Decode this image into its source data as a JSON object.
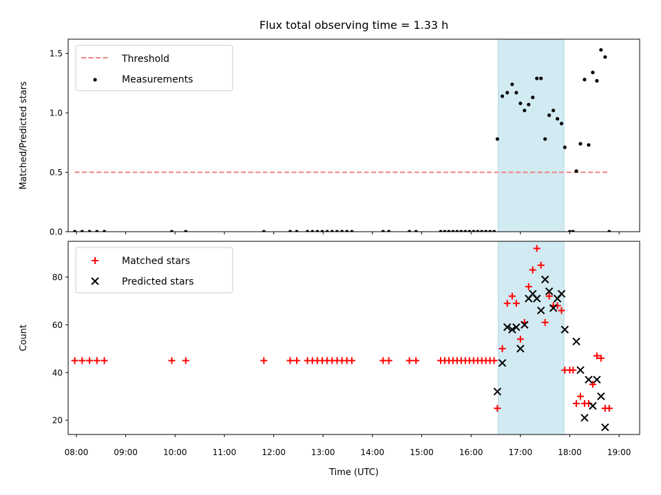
{
  "chart_data": {
    "title": "Flux total observing time = 1.33 h",
    "xlabel": "Time (UTC)",
    "x_ticks": [
      "08:00",
      "09:00",
      "10:00",
      "11:00",
      "12:00",
      "13:00",
      "14:00",
      "15:00",
      "16:00",
      "17:00",
      "18:00",
      "19:00"
    ],
    "xlim": [
      "07:50",
      "19:25"
    ],
    "shaded_interval": {
      "start": "16:33",
      "end": "17:53",
      "color": "#add8e6"
    },
    "panels": [
      {
        "type": "scatter",
        "ylabel": "Matched/Predicted stars",
        "ylim": [
          0,
          1.62
        ],
        "y_ticks": [
          0.0,
          0.5,
          1.0,
          1.5
        ],
        "y_tick_labels": [
          "0.0",
          "0.5",
          "1.0",
          "1.5"
        ],
        "legend_position": "upper-left",
        "series": [
          {
            "name": "Threshold",
            "style": "dashed-line",
            "color": "#f08080",
            "points": [
              [
                "07:58",
                0.5
              ],
              [
                "18:48",
                0.5
              ]
            ]
          },
          {
            "name": "Measurements",
            "style": "dot",
            "color": "#000000",
            "points": [
              [
                "07:58",
                0
              ],
              [
                "08:07",
                0
              ],
              [
                "08:16",
                0
              ],
              [
                "08:25",
                0
              ],
              [
                "08:34",
                0
              ],
              [
                "09:56",
                0
              ],
              [
                "10:13",
                0
              ],
              [
                "11:48",
                0
              ],
              [
                "12:20",
                0
              ],
              [
                "12:28",
                0
              ],
              [
                "12:41",
                0
              ],
              [
                "12:47",
                0
              ],
              [
                "12:53",
                0
              ],
              [
                "12:59",
                0
              ],
              [
                "13:05",
                0
              ],
              [
                "13:11",
                0
              ],
              [
                "13:17",
                0
              ],
              [
                "13:23",
                0
              ],
              [
                "13:29",
                0
              ],
              [
                "13:35",
                0
              ],
              [
                "14:13",
                0
              ],
              [
                "14:20",
                0
              ],
              [
                "14:45",
                0
              ],
              [
                "14:53",
                0
              ],
              [
                "15:23",
                0
              ],
              [
                "15:28",
                0
              ],
              [
                "15:33",
                0
              ],
              [
                "15:38",
                0
              ],
              [
                "15:43",
                0
              ],
              [
                "15:48",
                0
              ],
              [
                "15:53",
                0
              ],
              [
                "15:58",
                0
              ],
              [
                "16:03",
                0
              ],
              [
                "16:08",
                0
              ],
              [
                "16:13",
                0
              ],
              [
                "16:18",
                0
              ],
              [
                "16:23",
                0
              ],
              [
                "16:28",
                0
              ],
              [
                "16:32",
                0.78
              ],
              [
                "16:38",
                1.14
              ],
              [
                "16:44",
                1.17
              ],
              [
                "16:50",
                1.24
              ],
              [
                "16:55",
                1.17
              ],
              [
                "17:00",
                1.08
              ],
              [
                "17:05",
                1.02
              ],
              [
                "17:10",
                1.07
              ],
              [
                "17:15",
                1.13
              ],
              [
                "17:20",
                1.29
              ],
              [
                "17:25",
                1.29
              ],
              [
                "17:30",
                0.78
              ],
              [
                "17:35",
                0.98
              ],
              [
                "17:40",
                1.02
              ],
              [
                "17:45",
                0.95
              ],
              [
                "17:50",
                0.91
              ],
              [
                "17:54",
                0.71
              ],
              [
                "18:00",
                0
              ],
              [
                "18:04",
                0
              ],
              [
                "18:08",
                0.51
              ],
              [
                "18:13",
                0.74
              ],
              [
                "18:18",
                1.28
              ],
              [
                "18:23",
                0.73
              ],
              [
                "18:28",
                1.34
              ],
              [
                "18:33",
                1.27
              ],
              [
                "18:38",
                1.53
              ],
              [
                "18:43",
                1.47
              ],
              [
                "18:48",
                0
              ]
            ]
          }
        ]
      },
      {
        "type": "scatter",
        "ylabel": "Count",
        "ylim": [
          14,
          95
        ],
        "y_ticks": [
          20,
          40,
          60,
          80
        ],
        "y_tick_labels": [
          "20",
          "40",
          "60",
          "80"
        ],
        "legend_position": "upper-left",
        "series": [
          {
            "name": "Matched stars",
            "style": "plus",
            "color": "#ff0000",
            "points": [
              [
                "07:58",
                45
              ],
              [
                "08:07",
                45
              ],
              [
                "08:16",
                45
              ],
              [
                "08:25",
                45
              ],
              [
                "08:34",
                45
              ],
              [
                "09:56",
                45
              ],
              [
                "10:13",
                45
              ],
              [
                "11:48",
                45
              ],
              [
                "12:20",
                45
              ],
              [
                "12:28",
                45
              ],
              [
                "12:41",
                45
              ],
              [
                "12:47",
                45
              ],
              [
                "12:53",
                45
              ],
              [
                "12:59",
                45
              ],
              [
                "13:05",
                45
              ],
              [
                "13:11",
                45
              ],
              [
                "13:17",
                45
              ],
              [
                "13:23",
                45
              ],
              [
                "13:29",
                45
              ],
              [
                "13:35",
                45
              ],
              [
                "14:13",
                45
              ],
              [
                "14:20",
                45
              ],
              [
                "14:45",
                45
              ],
              [
                "14:53",
                45
              ],
              [
                "15:23",
                45
              ],
              [
                "15:28",
                45
              ],
              [
                "15:33",
                45
              ],
              [
                "15:38",
                45
              ],
              [
                "15:43",
                45
              ],
              [
                "15:48",
                45
              ],
              [
                "15:53",
                45
              ],
              [
                "15:58",
                45
              ],
              [
                "16:03",
                45
              ],
              [
                "16:08",
                45
              ],
              [
                "16:13",
                45
              ],
              [
                "16:18",
                45
              ],
              [
                "16:23",
                45
              ],
              [
                "16:28",
                45
              ],
              [
                "16:32",
                25
              ],
              [
                "16:38",
                50
              ],
              [
                "16:44",
                69
              ],
              [
                "16:50",
                72
              ],
              [
                "16:55",
                69
              ],
              [
                "17:00",
                54
              ],
              [
                "17:05",
                61
              ],
              [
                "17:10",
                76
              ],
              [
                "17:15",
                83
              ],
              [
                "17:20",
                92
              ],
              [
                "17:25",
                85
              ],
              [
                "17:30",
                61
              ],
              [
                "17:35",
                72
              ],
              [
                "17:40",
                68
              ],
              [
                "17:45",
                68
              ],
              [
                "17:50",
                66
              ],
              [
                "17:54",
                41
              ],
              [
                "18:00",
                41
              ],
              [
                "18:04",
                41
              ],
              [
                "18:08",
                27
              ],
              [
                "18:13",
                30
              ],
              [
                "18:18",
                27
              ],
              [
                "18:23",
                27
              ],
              [
                "18:28",
                35
              ],
              [
                "18:33",
                47
              ],
              [
                "18:38",
                46
              ],
              [
                "18:43",
                25
              ],
              [
                "18:48",
                25
              ]
            ]
          },
          {
            "name": "Predicted stars",
            "style": "cross",
            "color": "#000000",
            "points": [
              [
                "16:32",
                32
              ],
              [
                "16:38",
                44
              ],
              [
                "16:44",
                59
              ],
              [
                "16:50",
                58
              ],
              [
                "16:55",
                59
              ],
              [
                "17:00",
                50
              ],
              [
                "17:05",
                60
              ],
              [
                "17:10",
                71
              ],
              [
                "17:15",
                73
              ],
              [
                "17:20",
                71
              ],
              [
                "17:25",
                66
              ],
              [
                "17:30",
                79
              ],
              [
                "17:35",
                74
              ],
              [
                "17:40",
                67
              ],
              [
                "17:45",
                71
              ],
              [
                "17:50",
                73
              ],
              [
                "17:54",
                58
              ],
              [
                "18:08",
                53
              ],
              [
                "18:13",
                41
              ],
              [
                "18:18",
                21
              ],
              [
                "18:23",
                37
              ],
              [
                "18:28",
                26
              ],
              [
                "18:33",
                37
              ],
              [
                "18:38",
                30
              ],
              [
                "18:43",
                17
              ]
            ]
          }
        ]
      }
    ]
  }
}
